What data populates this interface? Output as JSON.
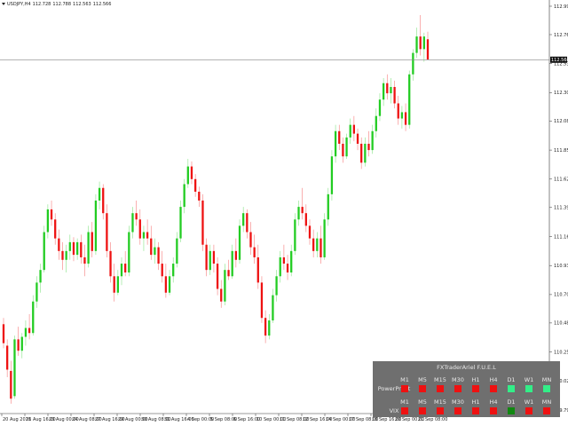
{
  "window": {
    "title_parts": [
      "USDJPY,H4",
      "112.728",
      "112.788",
      "112.563",
      "112.566"
    ]
  },
  "colors": {
    "bull": "#22cc22",
    "bear": "#ee1111",
    "strong_bull": "#118811",
    "light_bull": "#33ee88",
    "panel_bg": "#6f6f6f"
  },
  "price_axis": {
    "labels": [
      "112.990",
      "112.765",
      "112.535",
      "112.305",
      "112.080",
      "111.850",
      "111.620",
      "111.395",
      "111.165",
      "110.935",
      "110.705",
      "110.480",
      "110.250",
      "110.020",
      "109.790"
    ],
    "current_price": "112.566"
  },
  "time_axis": {
    "labels": [
      "20 Aug 2018",
      "21 Aug 16:00",
      "23 Aug 00:00",
      "24 Aug 08:00",
      "27 Aug 16:00",
      "29 Aug 00:00",
      "30 Aug 08:00",
      "31 Aug 16:00",
      "4 Sep 00:00",
      "5 Sep 08:00",
      "6 Sep 16:00",
      "10 Sep 00:00",
      "11 Sep 08:00",
      "12 Sep 16:00",
      "14 Sep 00:00",
      "17 Sep 08:00",
      "18 Sep 16:00",
      "20 Sep 00:00",
      "21 Sep 08:00"
    ]
  },
  "indicator": {
    "title": "FXTraderAriel F.U.E.L",
    "timeframes": [
      "M1",
      "M5",
      "M15",
      "M30",
      "H1",
      "H4",
      "D1",
      "W1",
      "MN"
    ],
    "rows": [
      {
        "label": "PowerProfit",
        "cells": [
          "bear",
          "bear",
          "bear",
          "bear",
          "bear",
          "bear",
          "light_bull",
          "light_bull",
          "light_bull"
        ]
      },
      {
        "label": "VIX",
        "cells": [
          "bear",
          "bear",
          "bear",
          "bear",
          "bear",
          "bear",
          "strong_bull",
          "bear",
          "bear"
        ]
      }
    ]
  },
  "chart_data": {
    "type": "candlestick",
    "symbol": "USDJPY",
    "timeframe": "H4",
    "ylim": [
      109.79,
      112.99
    ],
    "current_price": 112.566,
    "candles": [
      {
        "o": 110.47,
        "h": 110.52,
        "l": 110.28,
        "c": 110.32
      },
      {
        "o": 110.3,
        "h": 110.35,
        "l": 110.05,
        "c": 110.11
      },
      {
        "o": 110.1,
        "h": 110.18,
        "l": 109.84,
        "c": 109.88
      },
      {
        "o": 109.9,
        "h": 110.38,
        "l": 109.88,
        "c": 110.35
      },
      {
        "o": 110.35,
        "h": 110.45,
        "l": 110.22,
        "c": 110.26
      },
      {
        "o": 110.26,
        "h": 110.4,
        "l": 110.2,
        "c": 110.37
      },
      {
        "o": 110.37,
        "h": 110.5,
        "l": 110.3,
        "c": 110.44
      },
      {
        "o": 110.44,
        "h": 110.55,
        "l": 110.35,
        "c": 110.4
      },
      {
        "o": 110.4,
        "h": 110.7,
        "l": 110.38,
        "c": 110.65
      },
      {
        "o": 110.65,
        "h": 110.85,
        "l": 110.6,
        "c": 110.8
      },
      {
        "o": 110.8,
        "h": 110.95,
        "l": 110.72,
        "c": 110.9
      },
      {
        "o": 110.9,
        "h": 111.25,
        "l": 110.88,
        "c": 111.2
      },
      {
        "o": 111.2,
        "h": 111.42,
        "l": 111.15,
        "c": 111.38
      },
      {
        "o": 111.38,
        "h": 111.45,
        "l": 111.25,
        "c": 111.3
      },
      {
        "o": 111.3,
        "h": 111.35,
        "l": 111.1,
        "c": 111.15
      },
      {
        "o": 111.15,
        "h": 111.22,
        "l": 110.98,
        "c": 111.05
      },
      {
        "o": 111.05,
        "h": 111.12,
        "l": 110.9,
        "c": 110.98
      },
      {
        "o": 110.98,
        "h": 111.1,
        "l": 110.88,
        "c": 111.05
      },
      {
        "o": 111.05,
        "h": 111.18,
        "l": 110.98,
        "c": 111.12
      },
      {
        "o": 111.12,
        "h": 111.16,
        "l": 110.97,
        "c": 111.02
      },
      {
        "o": 111.02,
        "h": 111.15,
        "l": 110.98,
        "c": 111.12
      },
      {
        "o": 111.12,
        "h": 111.18,
        "l": 110.95,
        "c": 111.0
      },
      {
        "o": 111.0,
        "h": 111.1,
        "l": 110.85,
        "c": 110.95
      },
      {
        "o": 110.95,
        "h": 111.25,
        "l": 110.92,
        "c": 111.2
      },
      {
        "o": 111.2,
        "h": 111.28,
        "l": 111.0,
        "c": 111.05
      },
      {
        "o": 111.05,
        "h": 111.5,
        "l": 111.02,
        "c": 111.45
      },
      {
        "o": 111.45,
        "h": 111.6,
        "l": 111.38,
        "c": 111.55
      },
      {
        "o": 111.55,
        "h": 111.58,
        "l": 111.3,
        "c": 111.35
      },
      {
        "o": 111.35,
        "h": 111.42,
        "l": 111.0,
        "c": 111.05
      },
      {
        "o": 111.05,
        "h": 111.12,
        "l": 110.8,
        "c": 110.85
      },
      {
        "o": 110.85,
        "h": 110.95,
        "l": 110.65,
        "c": 110.72
      },
      {
        "o": 110.72,
        "h": 110.9,
        "l": 110.7,
        "c": 110.85
      },
      {
        "o": 110.85,
        "h": 111.0,
        "l": 110.78,
        "c": 110.95
      },
      {
        "o": 110.95,
        "h": 111.05,
        "l": 110.85,
        "c": 110.88
      },
      {
        "o": 110.88,
        "h": 111.25,
        "l": 110.85,
        "c": 111.2
      },
      {
        "o": 111.2,
        "h": 111.4,
        "l": 111.15,
        "c": 111.35
      },
      {
        "o": 111.35,
        "h": 111.45,
        "l": 111.25,
        "c": 111.3
      },
      {
        "o": 111.3,
        "h": 111.38,
        "l": 111.1,
        "c": 111.15
      },
      {
        "o": 111.15,
        "h": 111.25,
        "l": 111.05,
        "c": 111.2
      },
      {
        "o": 111.2,
        "h": 111.3,
        "l": 111.1,
        "c": 111.15
      },
      {
        "o": 111.15,
        "h": 111.25,
        "l": 110.98,
        "c": 111.02
      },
      {
        "o": 111.02,
        "h": 111.15,
        "l": 110.95,
        "c": 111.08
      },
      {
        "o": 111.08,
        "h": 111.12,
        "l": 110.9,
        "c": 110.95
      },
      {
        "o": 110.95,
        "h": 111.05,
        "l": 110.8,
        "c": 110.85
      },
      {
        "o": 110.85,
        "h": 110.95,
        "l": 110.68,
        "c": 110.72
      },
      {
        "o": 110.72,
        "h": 110.9,
        "l": 110.7,
        "c": 110.85
      },
      {
        "o": 110.85,
        "h": 111.0,
        "l": 110.8,
        "c": 110.95
      },
      {
        "o": 110.95,
        "h": 111.2,
        "l": 110.92,
        "c": 111.15
      },
      {
        "o": 111.15,
        "h": 111.45,
        "l": 111.12,
        "c": 111.4
      },
      {
        "o": 111.4,
        "h": 111.62,
        "l": 111.35,
        "c": 111.58
      },
      {
        "o": 111.58,
        "h": 111.78,
        "l": 111.55,
        "c": 111.72
      },
      {
        "o": 111.72,
        "h": 111.76,
        "l": 111.58,
        "c": 111.62
      },
      {
        "o": 111.62,
        "h": 111.66,
        "l": 111.48,
        "c": 111.52
      },
      {
        "o": 111.52,
        "h": 111.56,
        "l": 111.4,
        "c": 111.45
      },
      {
        "o": 111.45,
        "h": 111.5,
        "l": 111.05,
        "c": 111.1
      },
      {
        "o": 111.1,
        "h": 111.15,
        "l": 110.85,
        "c": 110.9
      },
      {
        "o": 110.9,
        "h": 111.1,
        "l": 110.86,
        "c": 111.05
      },
      {
        "o": 111.05,
        "h": 111.1,
        "l": 110.88,
        "c": 110.95
      },
      {
        "o": 110.95,
        "h": 111.0,
        "l": 110.7,
        "c": 110.75
      },
      {
        "o": 110.75,
        "h": 110.82,
        "l": 110.6,
        "c": 110.65
      },
      {
        "o": 110.65,
        "h": 110.95,
        "l": 110.62,
        "c": 110.9
      },
      {
        "o": 110.9,
        "h": 110.98,
        "l": 110.82,
        "c": 110.85
      },
      {
        "o": 110.85,
        "h": 111.1,
        "l": 110.83,
        "c": 111.05
      },
      {
        "o": 111.05,
        "h": 111.15,
        "l": 110.92,
        "c": 110.98
      },
      {
        "o": 110.98,
        "h": 111.3,
        "l": 110.95,
        "c": 111.25
      },
      {
        "o": 111.25,
        "h": 111.4,
        "l": 111.2,
        "c": 111.35
      },
      {
        "o": 111.35,
        "h": 111.38,
        "l": 111.15,
        "c": 111.2
      },
      {
        "o": 111.2,
        "h": 111.28,
        "l": 111.02,
        "c": 111.08
      },
      {
        "o": 111.08,
        "h": 111.18,
        "l": 110.95,
        "c": 111.0
      },
      {
        "o": 111.0,
        "h": 111.1,
        "l": 110.75,
        "c": 110.8
      },
      {
        "o": 110.8,
        "h": 110.85,
        "l": 110.48,
        "c": 110.52
      },
      {
        "o": 110.52,
        "h": 110.58,
        "l": 110.32,
        "c": 110.38
      },
      {
        "o": 110.38,
        "h": 110.55,
        "l": 110.35,
        "c": 110.5
      },
      {
        "o": 110.5,
        "h": 110.75,
        "l": 110.48,
        "c": 110.7
      },
      {
        "o": 110.7,
        "h": 110.9,
        "l": 110.65,
        "c": 110.85
      },
      {
        "o": 110.85,
        "h": 111.05,
        "l": 110.8,
        "c": 111.0
      },
      {
        "o": 111.0,
        "h": 111.1,
        "l": 110.9,
        "c": 110.95
      },
      {
        "o": 110.95,
        "h": 111.02,
        "l": 110.82,
        "c": 110.88
      },
      {
        "o": 110.88,
        "h": 111.1,
        "l": 110.85,
        "c": 111.05
      },
      {
        "o": 111.05,
        "h": 111.35,
        "l": 111.02,
        "c": 111.3
      },
      {
        "o": 111.3,
        "h": 111.45,
        "l": 111.25,
        "c": 111.4
      },
      {
        "o": 111.4,
        "h": 111.55,
        "l": 111.3,
        "c": 111.35
      },
      {
        "o": 111.35,
        "h": 111.42,
        "l": 111.2,
        "c": 111.25
      },
      {
        "o": 111.25,
        "h": 111.3,
        "l": 111.1,
        "c": 111.15
      },
      {
        "o": 111.15,
        "h": 111.22,
        "l": 111.0,
        "c": 111.05
      },
      {
        "o": 111.05,
        "h": 111.2,
        "l": 111.0,
        "c": 111.15
      },
      {
        "o": 111.15,
        "h": 111.25,
        "l": 110.95,
        "c": 111.0
      },
      {
        "o": 111.0,
        "h": 111.35,
        "l": 110.98,
        "c": 111.3
      },
      {
        "o": 111.3,
        "h": 111.55,
        "l": 111.25,
        "c": 111.5
      },
      {
        "o": 111.5,
        "h": 111.85,
        "l": 111.45,
        "c": 111.8
      },
      {
        "o": 111.8,
        "h": 112.05,
        "l": 111.75,
        "c": 112.0
      },
      {
        "o": 112.0,
        "h": 112.05,
        "l": 111.85,
        "c": 111.9
      },
      {
        "o": 111.9,
        "h": 111.95,
        "l": 111.75,
        "c": 111.8
      },
      {
        "o": 111.8,
        "h": 111.98,
        "l": 111.78,
        "c": 111.95
      },
      {
        "o": 111.95,
        "h": 112.1,
        "l": 111.9,
        "c": 112.05
      },
      {
        "o": 112.05,
        "h": 112.12,
        "l": 111.92,
        "c": 111.98
      },
      {
        "o": 111.98,
        "h": 112.02,
        "l": 111.85,
        "c": 111.9
      },
      {
        "o": 111.9,
        "h": 111.95,
        "l": 111.7,
        "c": 111.75
      },
      {
        "o": 111.75,
        "h": 111.95,
        "l": 111.72,
        "c": 111.9
      },
      {
        "o": 111.9,
        "h": 112.0,
        "l": 111.8,
        "c": 111.85
      },
      {
        "o": 111.85,
        "h": 112.05,
        "l": 111.82,
        "c": 112.0
      },
      {
        "o": 112.0,
        "h": 112.18,
        "l": 111.95,
        "c": 112.12
      },
      {
        "o": 112.12,
        "h": 112.3,
        "l": 112.08,
        "c": 112.25
      },
      {
        "o": 112.25,
        "h": 112.42,
        "l": 112.2,
        "c": 112.38
      },
      {
        "o": 112.38,
        "h": 112.45,
        "l": 112.25,
        "c": 112.3
      },
      {
        "o": 112.3,
        "h": 112.42,
        "l": 112.22,
        "c": 112.35
      },
      {
        "o": 112.35,
        "h": 112.4,
        "l": 112.18,
        "c": 112.22
      },
      {
        "o": 112.22,
        "h": 112.28,
        "l": 112.05,
        "c": 112.1
      },
      {
        "o": 112.1,
        "h": 112.2,
        "l": 112.02,
        "c": 112.15
      },
      {
        "o": 112.15,
        "h": 112.22,
        "l": 112.0,
        "c": 112.05
      },
      {
        "o": 112.05,
        "h": 112.48,
        "l": 112.02,
        "c": 112.45
      },
      {
        "o": 112.45,
        "h": 112.65,
        "l": 112.4,
        "c": 112.62
      },
      {
        "o": 112.62,
        "h": 112.82,
        "l": 112.58,
        "c": 112.75
      },
      {
        "o": 112.75,
        "h": 112.92,
        "l": 112.6,
        "c": 112.65
      },
      {
        "o": 112.65,
        "h": 112.78,
        "l": 112.55,
        "c": 112.75
      },
      {
        "o": 112.728,
        "h": 112.788,
        "l": 112.563,
        "c": 112.566
      }
    ]
  }
}
